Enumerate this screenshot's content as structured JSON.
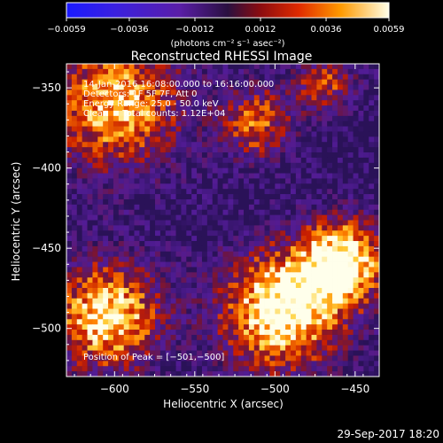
{
  "chart_data": {
    "type": "heatmap",
    "title": "Reconstructed RHESSI Image",
    "xlabel": "Heliocentric X (arcsec)",
    "ylabel": "Heliocentric Y (arcsec)",
    "xlim": [
      -630,
      -435
    ],
    "ylim": [
      -530,
      -335
    ],
    "x_ticks": [
      -600,
      -550,
      -500,
      -450
    ],
    "x_tick_labels": [
      "−600",
      "−550",
      "−500",
      "−450"
    ],
    "y_ticks": [
      -350,
      -400,
      -450,
      -500
    ],
    "y_tick_labels": [
      "−350",
      "−400",
      "−450",
      "−500"
    ],
    "colorbar": {
      "range": [
        -0.0059,
        0.0059
      ],
      "ticks": [
        -0.0059,
        -0.0036,
        -0.0012,
        0.0012,
        0.0036,
        0.0059
      ],
      "tick_labels": [
        "−0.0059",
        "−0.0036",
        "−0.0012",
        "0.0012",
        "0.0036",
        "0.0059"
      ],
      "units": "(photons cm⁻² s⁻¹ asec⁻²)"
    },
    "annotations": {
      "time_range": "14-Jan-2016 16:08:00.000 to 16:16:00.000",
      "detectors": "Detectors: 1F 5F 7F, Att 0",
      "energy": "Energy Range: 25.0 - 50.0 keV",
      "method": "Clean     Total counts: 1.12E+04",
      "peak": "Position of Peak = [−501,−500]"
    },
    "peak_position": [
      -501,
      -500
    ],
    "grid": false
  },
  "footer": {
    "timestamp": "29-Sep-2017 18:20"
  }
}
